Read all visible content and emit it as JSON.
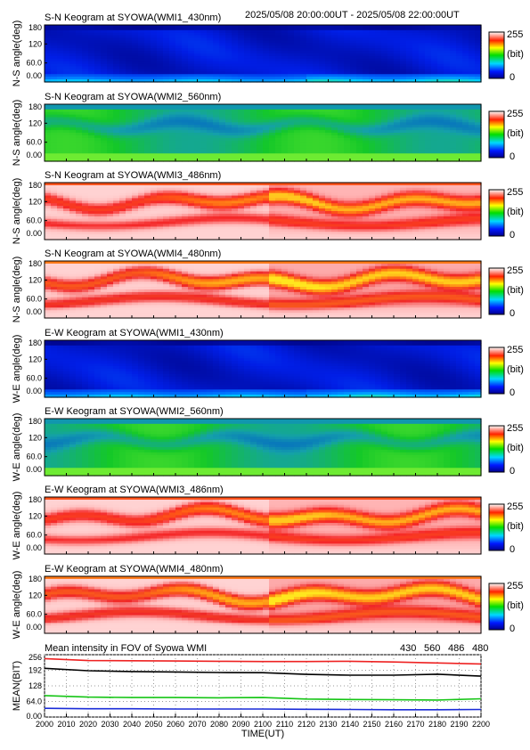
{
  "header": {
    "time_range": "2025/05/08 20:00:00UT - 2025/05/08 22:00:00UT"
  },
  "chart_data": [
    {
      "type": "heatmap",
      "title": "S-N Keogram at SYOWA(WMI1_430nm)",
      "ylabel": "N-S angle(deg)",
      "yticks": [
        "180",
        "120",
        "60.0",
        "0.00"
      ],
      "ylim": [
        0,
        180
      ],
      "xlim": [
        2000,
        2200
      ],
      "colorbar": {
        "max": "255",
        "unit": "(bit)",
        "min": "0"
      },
      "base_color": "blue"
    },
    {
      "type": "heatmap",
      "title": "S-N Keogram at SYOWA(WMI2_560nm)",
      "ylabel": "N-S angle(deg)",
      "yticks": [
        "180",
        "120",
        "60.0",
        "0.00"
      ],
      "ylim": [
        0,
        180
      ],
      "xlim": [
        2000,
        2200
      ],
      "colorbar": {
        "max": "255",
        "unit": "(bit)",
        "min": "0"
      },
      "base_color": "green"
    },
    {
      "type": "heatmap",
      "title": "S-N Keogram at SYOWA(WMI3_486nm)",
      "ylabel": "N-S angle(deg)",
      "yticks": [
        "180",
        "120",
        "60.0",
        "0.00"
      ],
      "ylim": [
        0,
        180
      ],
      "xlim": [
        2000,
        2200
      ],
      "colorbar": {
        "max": "255",
        "unit": "(bit)",
        "min": "0"
      },
      "base_color": "red-white"
    },
    {
      "type": "heatmap",
      "title": "S-N Keogram at SYOWA(WMI4_480nm)",
      "ylabel": "N-S angle(deg)",
      "yticks": [
        "180",
        "120",
        "60.0",
        "0.00"
      ],
      "ylim": [
        0,
        180
      ],
      "xlim": [
        2000,
        2200
      ],
      "colorbar": {
        "max": "255",
        "unit": "(bit)",
        "min": "0"
      },
      "base_color": "red-yellow"
    },
    {
      "type": "heatmap",
      "title": "E-W Keogram at SYOWA(WMI1_430nm)",
      "ylabel": "W-E angle(deg)",
      "yticks": [
        "180",
        "120",
        "60.0",
        "0.00"
      ],
      "ylim": [
        0,
        180
      ],
      "xlim": [
        2000,
        2200
      ],
      "colorbar": {
        "max": "255",
        "unit": "(bit)",
        "min": "0"
      },
      "base_color": "blue"
    },
    {
      "type": "heatmap",
      "title": "E-W Keogram at SYOWA(WMI2_560nm)",
      "ylabel": "W-E angle(deg)",
      "yticks": [
        "180",
        "120",
        "60.0",
        "0.00"
      ],
      "ylim": [
        0,
        180
      ],
      "xlim": [
        2000,
        2200
      ],
      "colorbar": {
        "max": "255",
        "unit": "(bit)",
        "min": "0"
      },
      "base_color": "green"
    },
    {
      "type": "heatmap",
      "title": "E-W Keogram at SYOWA(WMI3_486nm)",
      "ylabel": "W-E angle(deg)",
      "yticks": [
        "180",
        "120",
        "60.0",
        "0.00"
      ],
      "ylim": [
        0,
        180
      ],
      "xlim": [
        2000,
        2200
      ],
      "colorbar": {
        "max": "255",
        "unit": "(bit)",
        "min": "0"
      },
      "base_color": "red-white"
    },
    {
      "type": "heatmap",
      "title": "E-W Keogram at SYOWA(WMI4_480nm)",
      "ylabel": "W-E angle(deg)",
      "yticks": [
        "180",
        "120",
        "60.0",
        "0.00"
      ],
      "ylim": [
        0,
        180
      ],
      "xlim": [
        2000,
        2200
      ],
      "colorbar": {
        "max": "255",
        "unit": "(bit)",
        "min": "0"
      },
      "base_color": "red-yellow"
    },
    {
      "type": "line",
      "title": "Mean intensity in FOV of Syowa WMI",
      "ylabel": "MEAN(BIT)",
      "xlabel": "TIME(UT)",
      "yticks": [
        "256",
        "192",
        "128",
        "64.0",
        "0.00"
      ],
      "ylim": [
        0,
        256
      ],
      "xlim": [
        2000,
        2200
      ],
      "xticks": [
        "2000",
        "2010",
        "2020",
        "2030",
        "2040",
        "2050",
        "2060",
        "2070",
        "2080",
        "2090",
        "2100",
        "2110",
        "2120",
        "2130",
        "2140",
        "2150",
        "2160",
        "2170",
        "2180",
        "2190",
        "2200"
      ],
      "x": [
        2000,
        2020,
        2040,
        2060,
        2080,
        2100,
        2120,
        2140,
        2160,
        2180,
        2200
      ],
      "series": [
        {
          "name": "430",
          "color": "#1a2cd8",
          "values": [
            36,
            34,
            34,
            33,
            33,
            33,
            32,
            31,
            30,
            30,
            31
          ]
        },
        {
          "name": "560",
          "color": "#15c515",
          "values": [
            88,
            82,
            80,
            80,
            79,
            80,
            74,
            72,
            71,
            70,
            75
          ]
        },
        {
          "name": "486",
          "color": "#ee2222",
          "values": [
            240,
            232,
            231,
            230,
            229,
            228,
            228,
            229,
            226,
            222,
            218
          ]
        },
        {
          "name": "480",
          "color": "#000000",
          "values": [
            200,
            190,
            187,
            185,
            183,
            182,
            175,
            172,
            172,
            176,
            168
          ]
        }
      ]
    }
  ]
}
